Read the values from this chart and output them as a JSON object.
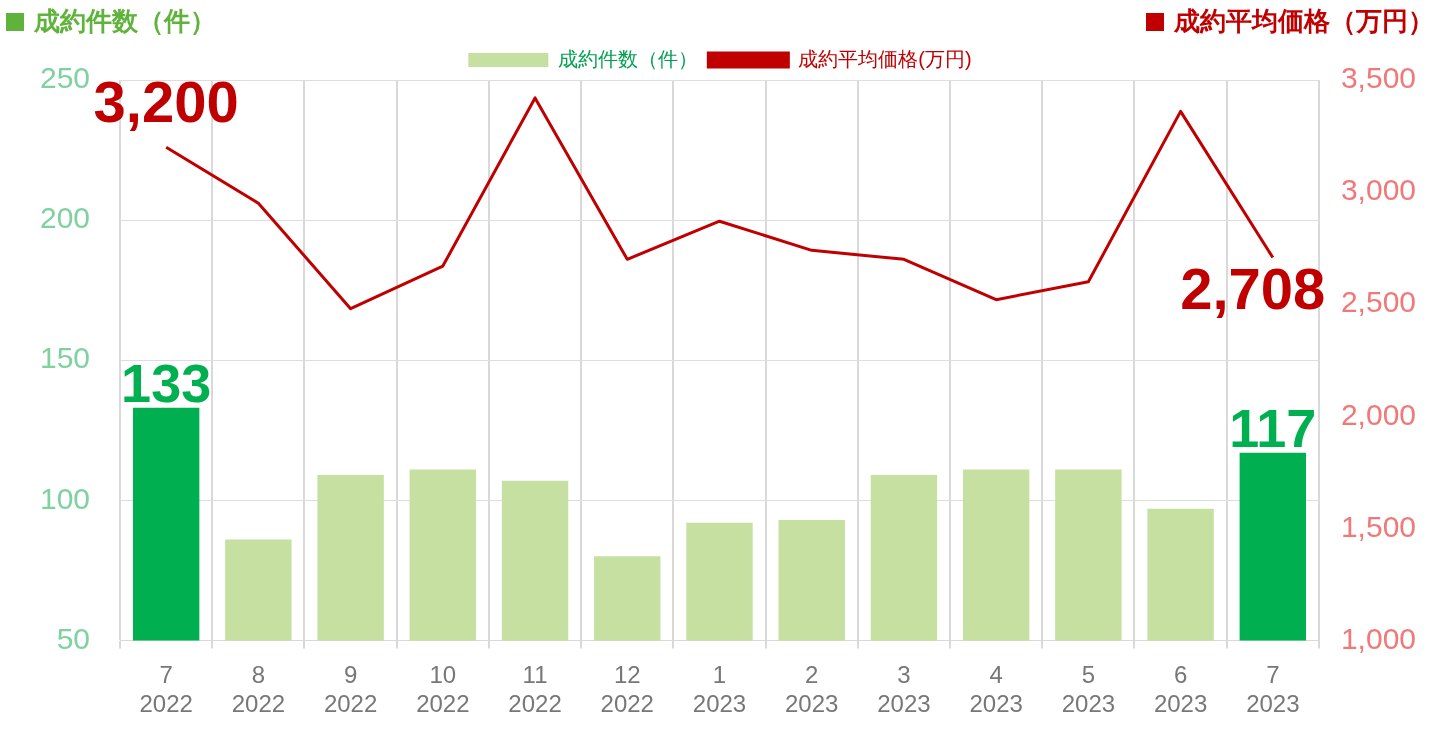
{
  "chart_data": {
    "type": "bar",
    "ylabel": "成約件数（件）",
    "y2label": "成約平均価格（万円）",
    "categories": [
      "7\n2022",
      "8\n2022",
      "9\n2022",
      "10\n2022",
      "11\n2022",
      "12\n2022",
      "1\n2023",
      "2\n2023",
      "3\n2023",
      "4\n2023",
      "5\n2023",
      "6\n2023",
      "7\n2023"
    ],
    "series": [
      {
        "name": "成約件数（件）",
        "color": "#c5e0a0",
        "colors": [
          "#00b050",
          "#c5e0a0",
          "#c5e0a0",
          "#c5e0a0",
          "#c5e0a0",
          "#c5e0a0",
          "#c5e0a0",
          "#c5e0a0",
          "#c5e0a0",
          "#c5e0a0",
          "#c5e0a0",
          "#c5e0a0",
          "#00b050"
        ],
        "values": [
          133,
          86,
          109,
          111,
          107,
          80,
          92,
          93,
          109,
          111,
          111,
          97,
          117
        ],
        "value_labels": [
          "133",
          null,
          null,
          null,
          null,
          null,
          null,
          null,
          null,
          null,
          null,
          null,
          "117"
        ]
      },
      {
        "name": "成約平均価格(万円)",
        "type": "line",
        "axis": "y2",
        "color": "#c00000",
        "values": [
          3200,
          2950,
          2480,
          2670,
          3420,
          2700,
          2870,
          2740,
          2700,
          2520,
          2600,
          3360,
          2708
        ],
        "value_labels": [
          "3,200",
          null,
          null,
          null,
          null,
          null,
          null,
          null,
          null,
          null,
          null,
          null,
          "2,708"
        ]
      }
    ],
    "ylim": [
      50,
      250
    ],
    "yticks": [
      50,
      100,
      150,
      200,
      250
    ],
    "y2lim": [
      1000,
      3500
    ],
    "y2ticks": [
      {
        "value": 1000,
        "label": "1,000"
      },
      {
        "value": 1500,
        "label": "1,500"
      },
      {
        "value": 2000,
        "label": "2,000"
      },
      {
        "value": 2500,
        "label": "2,500"
      },
      {
        "value": 3000,
        "label": "3,000"
      },
      {
        "value": 3500,
        "label": "3,500"
      }
    ],
    "grid": true,
    "legend": "top",
    "marker": "none",
    "line_style": "solid"
  }
}
